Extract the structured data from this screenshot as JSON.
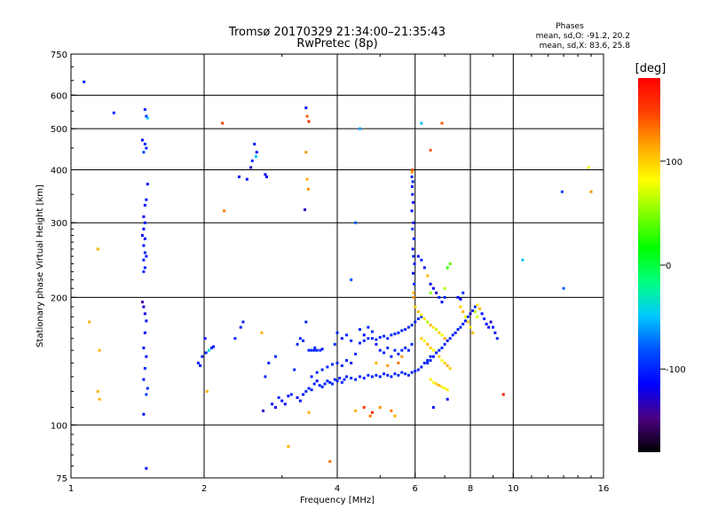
{
  "chart_data": {
    "type": "scatter",
    "title": "Tromsø 20170329 21:34:00–21:35:43",
    "subtitle": "RwPretec (8p)",
    "stats": {
      "heading": "Phases",
      "line1": "mean, sd,O: -91.2, 20.2",
      "line2": "mean, sd,X:  83.6, 25.8"
    },
    "xlabel": "Frequency [MHz]",
    "ylabel": "Stationary phase Virtual Height [km]",
    "x_scale": "log",
    "y_scale": "log",
    "xlim": [
      1,
      16
    ],
    "ylim": [
      75,
      750
    ],
    "x_ticks": [
      {
        "v": 1,
        "label": "1"
      },
      {
        "v": 2,
        "label": "2"
      },
      {
        "v": 4,
        "label": "4"
      },
      {
        "v": 6,
        "label": "6"
      },
      {
        "v": 8,
        "label": "8"
      },
      {
        "v": 10,
        "label": "10"
      },
      {
        "v": 16,
        "label": "16"
      }
    ],
    "x_grid": [
      2,
      4,
      6,
      8,
      10
    ],
    "y_ticks": [
      {
        "v": 75,
        "label": "75"
      },
      {
        "v": 100,
        "label": "100"
      },
      {
        "v": 200,
        "label": "200"
      },
      {
        "v": 300,
        "label": "300"
      },
      {
        "v": 400,
        "label": "400"
      },
      {
        "v": 500,
        "label": "500"
      },
      {
        "v": 600,
        "label": "600"
      },
      {
        "v": 750,
        "label": "750"
      }
    ],
    "y_grid": [
      100,
      200,
      300,
      400,
      500,
      600
    ],
    "grid": true,
    "colorbar": {
      "label": "[deg]",
      "range": [
        -180,
        180
      ],
      "ticks": [
        {
          "v": 100,
          "label": "100"
        },
        {
          "v": 0,
          "label": "0"
        },
        {
          "v": -100,
          "label": "-100"
        }
      ],
      "stops": [
        "#000000",
        "#4b0082",
        "#0000ff",
        "#0050ff",
        "#00c8ff",
        "#00ff80",
        "#00ff00",
        "#80ff00",
        "#ffff00",
        "#ffa500",
        "#ff4000",
        "#ff0000"
      ]
    },
    "points": [
      [
        1.07,
        645,
        -100
      ],
      [
        1.25,
        545,
        -100
      ],
      [
        1.47,
        555,
        -100
      ],
      [
        1.48,
        535,
        -100
      ],
      [
        1.49,
        530,
        -50
      ],
      [
        1.45,
        470,
        -110
      ],
      [
        1.47,
        460,
        -100
      ],
      [
        1.48,
        450,
        -100
      ],
      [
        1.46,
        440,
        -90
      ],
      [
        1.49,
        370,
        -110
      ],
      [
        1.48,
        340,
        -110
      ],
      [
        1.47,
        330,
        -110
      ],
      [
        1.46,
        310,
        -120
      ],
      [
        1.47,
        300,
        -110
      ],
      [
        1.46,
        290,
        -110
      ],
      [
        1.45,
        280,
        -110
      ],
      [
        1.47,
        275,
        -110
      ],
      [
        1.46,
        265,
        -110
      ],
      [
        1.47,
        255,
        -100
      ],
      [
        1.48,
        250,
        -110
      ],
      [
        1.46,
        245,
        -100
      ],
      [
        1.47,
        235,
        -110
      ],
      [
        1.46,
        230,
        -100
      ],
      [
        1.45,
        195,
        -140
      ],
      [
        1.46,
        190,
        -130
      ],
      [
        1.47,
        183,
        -120
      ],
      [
        1.48,
        176,
        -110
      ],
      [
        1.47,
        165,
        -110
      ],
      [
        1.46,
        152,
        -110
      ],
      [
        1.48,
        145,
        -110
      ],
      [
        1.47,
        136,
        -100
      ],
      [
        1.46,
        128,
        -110
      ],
      [
        1.49,
        122,
        -100
      ],
      [
        1.48,
        118,
        -90
      ],
      [
        1.46,
        106,
        -110
      ],
      [
        1.48,
        79,
        -110
      ],
      [
        1.1,
        175,
        110
      ],
      [
        1.15,
        260,
        110
      ],
      [
        1.16,
        150,
        110
      ],
      [
        1.15,
        120,
        110
      ],
      [
        1.16,
        115,
        110
      ],
      [
        1.94,
        140,
        -100
      ],
      [
        1.96,
        138,
        -110
      ],
      [
        1.98,
        145,
        -100
      ],
      [
        2.02,
        148,
        -100
      ],
      [
        2.05,
        150,
        -40
      ],
      [
        2.08,
        152,
        -100
      ],
      [
        2.1,
        153,
        -110
      ],
      [
        2.01,
        160,
        -120
      ],
      [
        2.03,
        120,
        110
      ],
      [
        2.22,
        320,
        130
      ],
      [
        2.2,
        515,
        150
      ],
      [
        2.35,
        160,
        -100
      ],
      [
        2.42,
        170,
        -100
      ],
      [
        2.45,
        175,
        -100
      ],
      [
        2.4,
        385,
        -110
      ],
      [
        2.5,
        380,
        -110
      ],
      [
        2.55,
        405,
        -130
      ],
      [
        2.57,
        420,
        -100
      ],
      [
        2.62,
        430,
        -50
      ],
      [
        2.6,
        460,
        -110
      ],
      [
        2.63,
        440,
        -110
      ],
      [
        2.75,
        390,
        -110
      ],
      [
        2.77,
        385,
        -110
      ],
      [
        2.7,
        165,
        110
      ],
      [
        2.75,
        130,
        -100
      ],
      [
        2.8,
        140,
        -100
      ],
      [
        2.9,
        145,
        -100
      ],
      [
        3.4,
        560,
        -110
      ],
      [
        3.42,
        535,
        140
      ],
      [
        3.45,
        520,
        160
      ],
      [
        3.4,
        440,
        120
      ],
      [
        3.42,
        380,
        110
      ],
      [
        3.44,
        360,
        120
      ],
      [
        3.38,
        322,
        -130
      ],
      [
        3.4,
        175,
        -100
      ],
      [
        3.45,
        150,
        -100
      ],
      [
        3.5,
        150,
        -100
      ],
      [
        3.55,
        150,
        -100
      ],
      [
        3.6,
        150,
        -100
      ],
      [
        3.66,
        150,
        -100
      ],
      [
        3.7,
        151,
        -100
      ],
      [
        3.56,
        152,
        -100
      ],
      [
        3.3,
        160,
        -100
      ],
      [
        3.35,
        158,
        -100
      ],
      [
        3.25,
        155,
        -100
      ],
      [
        3.2,
        135,
        -100
      ],
      [
        3.1,
        117,
        -110
      ],
      [
        3.05,
        112,
        -110
      ],
      [
        3.0,
        114,
        -110
      ],
      [
        2.95,
        116,
        -100
      ],
      [
        2.9,
        110,
        -120
      ],
      [
        2.85,
        112,
        -110
      ],
      [
        2.72,
        108,
        -130
      ],
      [
        3.15,
        118,
        -100
      ],
      [
        3.25,
        116,
        -110
      ],
      [
        3.3,
        114,
        -110
      ],
      [
        3.35,
        118,
        -110
      ],
      [
        3.4,
        120,
        -100
      ],
      [
        3.45,
        122,
        -100
      ],
      [
        3.5,
        121,
        -100
      ],
      [
        3.55,
        125,
        -100
      ],
      [
        3.6,
        127,
        -110
      ],
      [
        3.65,
        124,
        -100
      ],
      [
        3.7,
        123,
        -100
      ],
      [
        3.75,
        125,
        -100
      ],
      [
        3.8,
        127,
        -100
      ],
      [
        3.85,
        126,
        -100
      ],
      [
        3.9,
        125,
        -100
      ],
      [
        3.95,
        128,
        -100
      ],
      [
        4.0,
        127,
        -100
      ],
      [
        4.05,
        129,
        -100
      ],
      [
        4.1,
        126,
        -100
      ],
      [
        4.15,
        128,
        -100
      ],
      [
        4.2,
        130,
        -100
      ],
      [
        4.3,
        129,
        -100
      ],
      [
        4.4,
        128,
        -100
      ],
      [
        4.5,
        130,
        -100
      ],
      [
        4.6,
        129,
        -100
      ],
      [
        4.7,
        131,
        -100
      ],
      [
        4.8,
        130,
        -100
      ],
      [
        4.9,
        131,
        -100
      ],
      [
        5.0,
        130,
        -100
      ],
      [
        5.1,
        132,
        -100
      ],
      [
        5.2,
        131,
        -100
      ],
      [
        5.3,
        130,
        -100
      ],
      [
        5.4,
        132,
        -100
      ],
      [
        5.5,
        131,
        -100
      ],
      [
        5.6,
        133,
        -100
      ],
      [
        5.7,
        132,
        -100
      ],
      [
        5.8,
        131,
        -100
      ],
      [
        5.9,
        133,
        -100
      ],
      [
        6.0,
        134,
        -100
      ],
      [
        6.1,
        135,
        -100
      ],
      [
        6.2,
        137,
        -100
      ],
      [
        6.3,
        140,
        -100
      ],
      [
        6.4,
        142,
        -100
      ],
      [
        6.5,
        145,
        -100
      ],
      [
        3.5,
        130,
        -100
      ],
      [
        3.6,
        133,
        -100
      ],
      [
        3.7,
        135,
        -100
      ],
      [
        3.8,
        137,
        -100
      ],
      [
        3.9,
        139,
        -100
      ],
      [
        4.0,
        140,
        -100
      ],
      [
        4.1,
        138,
        -100
      ],
      [
        4.2,
        142,
        -100
      ],
      [
        4.3,
        140,
        -110
      ],
      [
        4.4,
        147,
        -100
      ],
      [
        4.5,
        156,
        -100
      ],
      [
        4.6,
        158,
        -100
      ],
      [
        4.7,
        160,
        -100
      ],
      [
        4.8,
        160,
        -100
      ],
      [
        4.9,
        159,
        -100
      ],
      [
        5.0,
        161,
        -100
      ],
      [
        5.1,
        162,
        -100
      ],
      [
        5.2,
        160,
        -100
      ],
      [
        5.3,
        163,
        -100
      ],
      [
        5.4,
        164,
        -100
      ],
      [
        5.5,
        165,
        -100
      ],
      [
        5.6,
        167,
        -100
      ],
      [
        5.7,
        168,
        -100
      ],
      [
        5.8,
        170,
        -100
      ],
      [
        5.9,
        172,
        -100
      ],
      [
        6.0,
        175,
        -100
      ],
      [
        6.1,
        178,
        -100
      ],
      [
        6.2,
        180,
        -100
      ],
      [
        4.5,
        168,
        -100
      ],
      [
        4.6,
        163,
        -110
      ],
      [
        4.7,
        170,
        -100
      ],
      [
        4.8,
        166,
        -100
      ],
      [
        4.9,
        155,
        -110
      ],
      [
        5.0,
        150,
        -100
      ],
      [
        5.1,
        148,
        -100
      ],
      [
        5.2,
        152,
        -100
      ],
      [
        5.3,
        145,
        -100
      ],
      [
        5.4,
        150,
        -100
      ],
      [
        5.5,
        147,
        -100
      ],
      [
        5.6,
        150,
        -100
      ],
      [
        5.7,
        152,
        -100
      ],
      [
        5.8,
        150,
        -100
      ],
      [
        5.9,
        155,
        -100
      ],
      [
        4.0,
        165,
        -100
      ],
      [
        4.1,
        160,
        -110
      ],
      [
        4.2,
        163,
        -100
      ],
      [
        4.3,
        158,
        -100
      ],
      [
        3.95,
        155,
        -100
      ],
      [
        3.45,
        107,
        110
      ],
      [
        3.85,
        82,
        130
      ],
      [
        3.1,
        89,
        110
      ],
      [
        4.4,
        108,
        110
      ],
      [
        4.6,
        110,
        150
      ],
      [
        4.75,
        105,
        130
      ],
      [
        4.8,
        107,
        160
      ],
      [
        5.0,
        110,
        120
      ],
      [
        5.3,
        108,
        130
      ],
      [
        5.4,
        105,
        110
      ],
      [
        5.5,
        140,
        130
      ],
      [
        5.6,
        145,
        120
      ],
      [
        4.9,
        140,
        110
      ],
      [
        5.2,
        138,
        120
      ],
      [
        5.9,
        395,
        120
      ],
      [
        5.92,
        400,
        140
      ],
      [
        5.9,
        385,
        -100
      ],
      [
        5.93,
        375,
        -100
      ],
      [
        5.91,
        365,
        -100
      ],
      [
        5.92,
        350,
        -110
      ],
      [
        5.94,
        335,
        -120
      ],
      [
        5.9,
        320,
        -110
      ],
      [
        5.95,
        300,
        -110
      ],
      [
        5.92,
        290,
        -100
      ],
      [
        5.96,
        275,
        -100
      ],
      [
        5.93,
        260,
        -110
      ],
      [
        5.95,
        250,
        -100
      ],
      [
        5.98,
        240,
        -110
      ],
      [
        5.94,
        228,
        -110
      ],
      [
        5.97,
        215,
        -100
      ],
      [
        5.95,
        205,
        110
      ],
      [
        5.96,
        200,
        120
      ],
      [
        6.1,
        250,
        -110
      ],
      [
        6.2,
        245,
        -100
      ],
      [
        6.3,
        235,
        -110
      ],
      [
        6.4,
        225,
        110
      ],
      [
        6.5,
        215,
        -110
      ],
      [
        6.6,
        210,
        -120
      ],
      [
        6.7,
        205,
        -130
      ],
      [
        6.8,
        200,
        -100
      ],
      [
        6.9,
        195,
        -110
      ],
      [
        7.0,
        200,
        -100
      ],
      [
        7.1,
        235,
        30
      ],
      [
        7.2,
        240,
        40
      ],
      [
        7.0,
        210,
        60
      ],
      [
        6.5,
        205,
        50
      ],
      [
        6.0,
        190,
        100
      ],
      [
        6.1,
        185,
        110
      ],
      [
        6.2,
        182,
        80
      ],
      [
        6.3,
        178,
        90
      ],
      [
        6.4,
        175,
        60
      ],
      [
        6.5,
        172,
        110
      ],
      [
        6.6,
        170,
        90
      ],
      [
        6.7,
        168,
        70
      ],
      [
        6.8,
        165,
        100
      ],
      [
        6.9,
        163,
        80
      ],
      [
        7.0,
        160,
        110
      ],
      [
        6.2,
        160,
        100
      ],
      [
        6.3,
        158,
        80
      ],
      [
        6.4,
        155,
        110
      ],
      [
        6.5,
        152,
        100
      ],
      [
        6.6,
        150,
        80
      ],
      [
        6.7,
        148,
        110
      ],
      [
        6.8,
        145,
        100
      ],
      [
        6.9,
        142,
        80
      ],
      [
        7.0,
        140,
        100
      ],
      [
        7.1,
        138,
        110
      ],
      [
        7.2,
        136,
        100
      ],
      [
        6.5,
        128,
        90
      ],
      [
        6.6,
        126,
        80
      ],
      [
        6.7,
        125,
        100
      ],
      [
        6.8,
        124,
        110
      ],
      [
        6.9,
        123,
        90
      ],
      [
        7.0,
        122,
        80
      ],
      [
        7.1,
        121,
        90
      ],
      [
        6.4,
        140,
        -100
      ],
      [
        6.5,
        142,
        -100
      ],
      [
        6.6,
        145,
        -110
      ],
      [
        6.7,
        148,
        -100
      ],
      [
        6.8,
        150,
        -100
      ],
      [
        6.9,
        152,
        -100
      ],
      [
        7.0,
        155,
        -100
      ],
      [
        7.1,
        158,
        -110
      ],
      [
        7.2,
        160,
        -100
      ],
      [
        7.3,
        163,
        -100
      ],
      [
        7.4,
        165,
        -110
      ],
      [
        7.5,
        168,
        -100
      ],
      [
        7.6,
        170,
        -100
      ],
      [
        7.7,
        173,
        -100
      ],
      [
        7.8,
        176,
        -110
      ],
      [
        7.9,
        180,
        -100
      ],
      [
        8.0,
        183,
        -130
      ],
      [
        8.1,
        186,
        -110
      ],
      [
        8.2,
        190,
        -100
      ],
      [
        8.3,
        192,
        90
      ],
      [
        8.4,
        188,
        110
      ],
      [
        8.5,
        183,
        -110
      ],
      [
        8.6,
        178,
        -100
      ],
      [
        8.7,
        173,
        -110
      ],
      [
        8.8,
        170,
        -120
      ],
      [
        8.9,
        175,
        -130
      ],
      [
        9.0,
        170,
        -100
      ],
      [
        9.1,
        165,
        -110
      ],
      [
        9.2,
        160,
        -100
      ],
      [
        7.6,
        190,
        100
      ],
      [
        7.7,
        185,
        110
      ],
      [
        7.8,
        180,
        80
      ],
      [
        7.9,
        175,
        100
      ],
      [
        8.0,
        170,
        90
      ],
      [
        8.1,
        165,
        110
      ],
      [
        8.2,
        185,
        60
      ],
      [
        8.3,
        180,
        70
      ],
      [
        7.5,
        200,
        -110
      ],
      [
        7.6,
        198,
        -120
      ],
      [
        7.7,
        205,
        -100
      ],
      [
        6.6,
        110,
        -110
      ],
      [
        7.1,
        115,
        -110
      ],
      [
        6.2,
        515,
        -50
      ],
      [
        6.9,
        515,
        140
      ],
      [
        6.5,
        445,
        140
      ],
      [
        9.5,
        118,
        170
      ],
      [
        10.5,
        245,
        -50
      ],
      [
        12.9,
        355,
        -90
      ],
      [
        13.0,
        210,
        -80
      ],
      [
        14.8,
        405,
        80
      ],
      [
        15.0,
        355,
        120
      ],
      [
        4.4,
        300,
        -80
      ],
      [
        4.5,
        500,
        -60
      ],
      [
        4.3,
        220,
        -80
      ]
    ]
  }
}
